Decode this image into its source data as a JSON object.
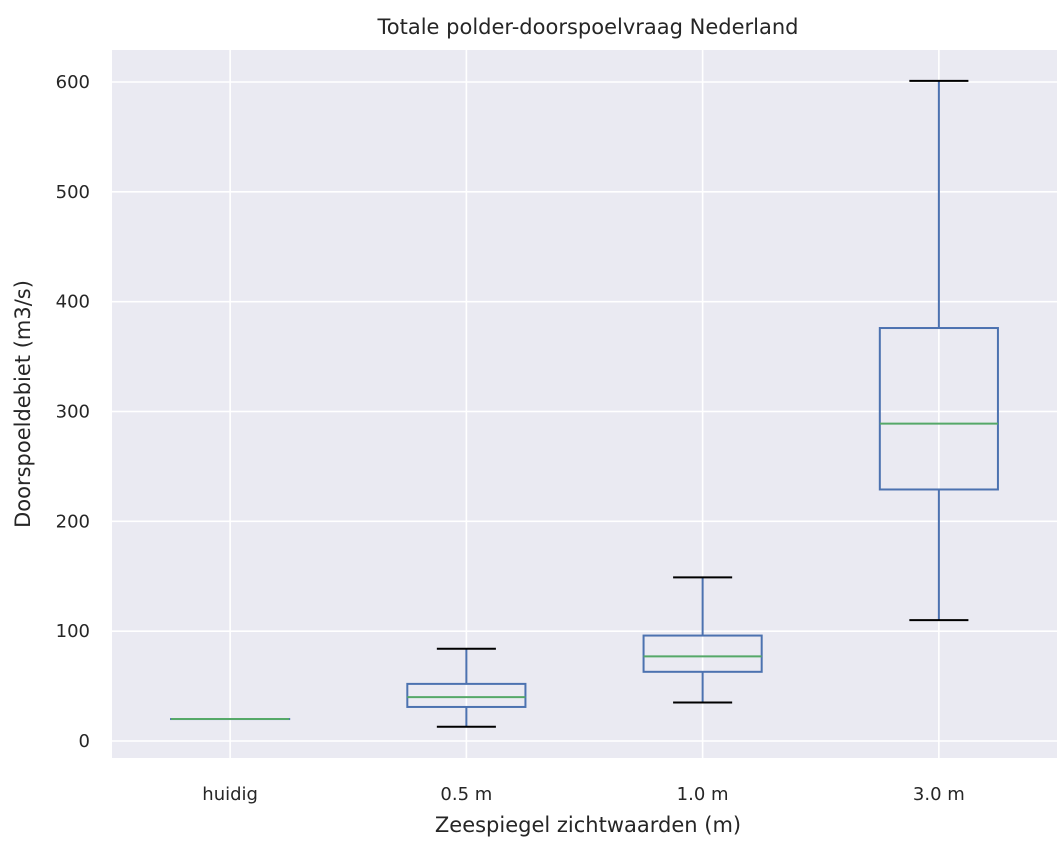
{
  "chart_data": {
    "type": "box",
    "title": "Totale polder-doorspoelvraag Nederland",
    "xlabel": "Zeespiegel zichtwaarden (m)",
    "ylabel": "Doorspoeldebiet (m3/s)",
    "ylim": [
      -15,
      630
    ],
    "yticks": [
      0,
      100,
      200,
      300,
      400,
      500,
      600
    ],
    "categories": [
      "huidig",
      "0.5 m",
      "1.0 m",
      "3.0 m"
    ],
    "boxes": [
      {
        "whisker_low": 20,
        "q1": 20,
        "median": 20,
        "q3": 20,
        "whisker_high": 20
      },
      {
        "whisker_low": 13,
        "q1": 31,
        "median": 40,
        "q3": 52,
        "whisker_high": 84
      },
      {
        "whisker_low": 35,
        "q1": 63,
        "median": 77,
        "q3": 96,
        "whisker_high": 149
      },
      {
        "whisker_low": 110,
        "q1": 229,
        "median": 289,
        "q3": 376,
        "whisker_high": 601
      }
    ],
    "grid": true,
    "colors": {
      "background": "#eaeaf2",
      "grid": "#ffffff",
      "box": "#4c72b0",
      "median": "#55a868",
      "whisker_cap": "#000000"
    }
  }
}
